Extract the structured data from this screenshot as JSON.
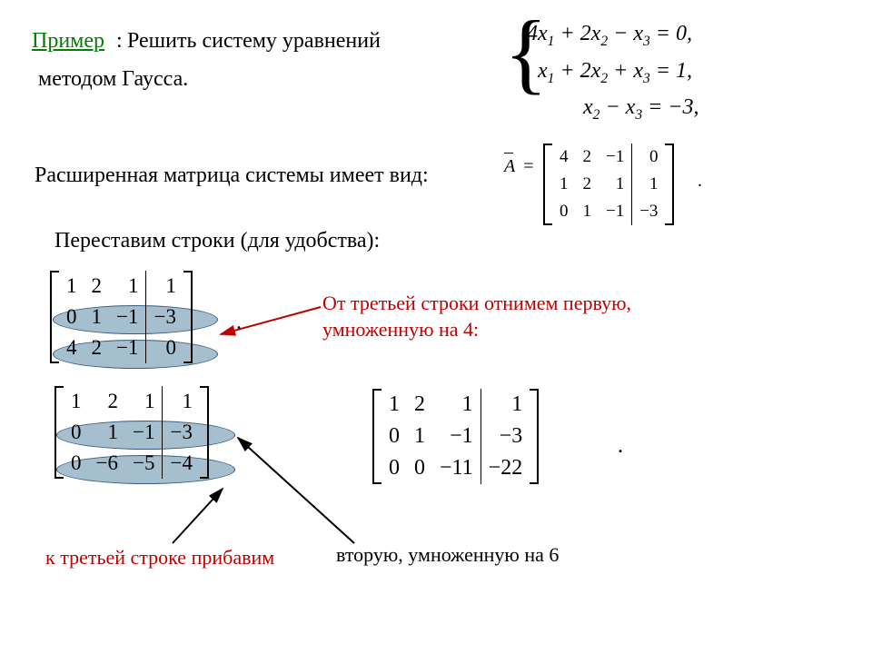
{
  "header": {
    "example_label": "Пример",
    "colon": ":",
    "task": "Решить систему уравнений",
    "method": "методом Гаусса."
  },
  "system": {
    "eq1": "4x₁ + 2x₂ − x₃ = 0,",
    "eq2": "x₁ + 2x₂ + x₃ = 1,",
    "eq3": "x₂ − x₃ = −3,",
    "eq1_parts": {
      "a": "4",
      "b": "2",
      "c": "−",
      "rhs": "0"
    },
    "eq2_parts": {
      "a": "",
      "b": "2",
      "c": "+",
      "rhs": "1"
    },
    "eq3_parts": {
      "b": "",
      "c": "−",
      "rhs": "−3"
    }
  },
  "aug_text": "Расширенная матрица системы имеет вид:",
  "perm_text": "Переставим строки (для удобства):",
  "A_label": "A",
  "equals": "=",
  "matrix_A": {
    "rows": [
      [
        "4",
        "2",
        "−1",
        "0"
      ],
      [
        "1",
        "2",
        "1",
        "1"
      ],
      [
        "0",
        "1",
        "−1",
        "−3"
      ]
    ]
  },
  "matrix_B": {
    "rows": [
      [
        "1",
        "2",
        "1",
        "1"
      ],
      [
        "0",
        "1",
        "−1",
        "−3"
      ],
      [
        "4",
        "2",
        "−1",
        "0"
      ]
    ]
  },
  "matrix_C": {
    "rows": [
      [
        "1",
        "2",
        "1",
        "1"
      ],
      [
        "0",
        "1",
        "−1",
        "−3"
      ],
      [
        "0",
        "−6",
        "−5",
        "−4"
      ]
    ]
  },
  "matrix_D": {
    "rows": [
      [
        "1",
        "2",
        "1",
        "1"
      ],
      [
        "0",
        "1",
        "−1",
        "−3"
      ],
      [
        "0",
        "0",
        "−11",
        "−22"
      ]
    ]
  },
  "anno1": "От третьей строки отнимем первую,\nумноженную на 4:",
  "anno2_left": "к третьей строке прибавим",
  "anno2_right": "вторую, умноженную на 6",
  "dot": ".",
  "colors": {
    "green": "#008000",
    "red": "#c00000",
    "ellipse_fill": "rgba(93,138,168,0.55)",
    "arrow_red": "#c00000",
    "arrow_black": "#000000"
  },
  "layout": {
    "fontsize_body": 24,
    "fontsize_anno": 22,
    "matrix_small_scale": 0.82
  }
}
